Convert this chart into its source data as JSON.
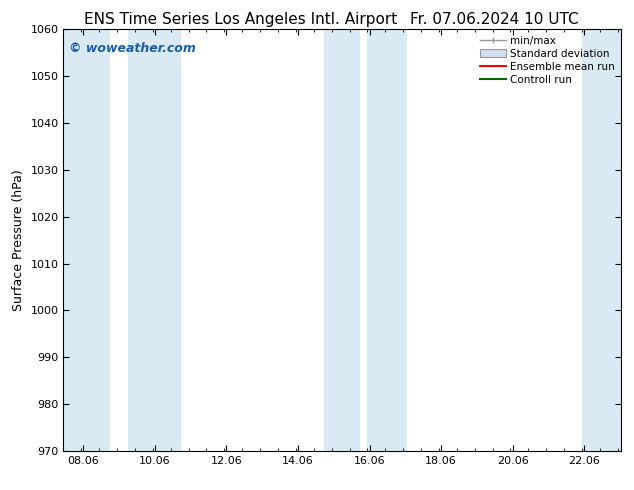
{
  "title_left": "ENS Time Series Los Angeles Intl. Airport",
  "title_right": "Fr. 07.06.2024 10 UTC",
  "ylabel": "Surface Pressure (hPa)",
  "ylim": [
    970,
    1060
  ],
  "yticks": [
    970,
    980,
    990,
    1000,
    1010,
    1020,
    1030,
    1040,
    1050,
    1060
  ],
  "xlim_start": 7.5,
  "xlim_end": 23.1,
  "xtick_positions": [
    8.06,
    10.06,
    12.06,
    14.06,
    16.06,
    18.06,
    20.06,
    22.06
  ],
  "xtick_labels": [
    "08.06",
    "10.06",
    "12.06",
    "14.06",
    "16.06",
    "18.06",
    "20.06",
    "22.06"
  ],
  "shaded_bands": [
    {
      "x_start": 7.5,
      "x_end": 8.8
    },
    {
      "x_start": 9.3,
      "x_end": 10.8
    },
    {
      "x_start": 14.8,
      "x_end": 15.8
    },
    {
      "x_start": 16.0,
      "x_end": 17.1
    },
    {
      "x_start": 22.0,
      "x_end": 23.1
    }
  ],
  "shaded_color": "#daeaf5",
  "watermark_text": "© woweather.com",
  "watermark_color": "#1a5fa8",
  "legend_items": [
    {
      "label": "min/max",
      "type": "errorbar",
      "color": "#999999"
    },
    {
      "label": "Standard deviation",
      "type": "box",
      "facecolor": "#cfe0f0",
      "edgecolor": "#999999"
    },
    {
      "label": "Ensemble mean run",
      "type": "line",
      "color": "#ff0000"
    },
    {
      "label": "Controll run",
      "type": "line",
      "color": "#006600"
    }
  ],
  "background_color": "#ffffff",
  "title_fontsize": 11,
  "tick_fontsize": 8,
  "label_fontsize": 9,
  "legend_fontsize": 7.5,
  "watermark_fontsize": 9
}
